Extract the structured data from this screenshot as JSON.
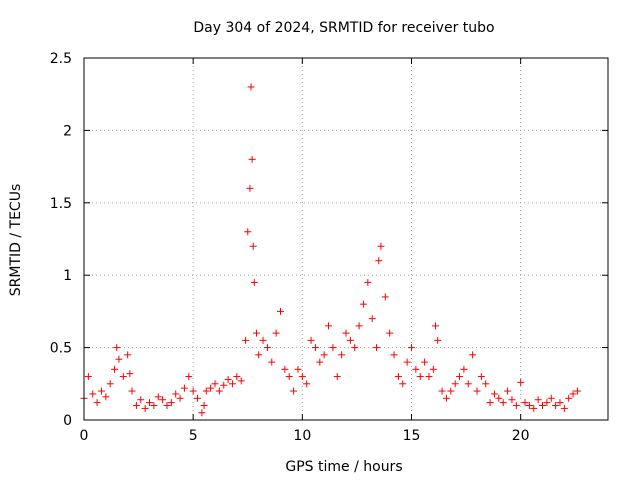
{
  "chart_data": {
    "type": "scatter",
    "title": "Day 304 of 2024, SRMTID for receiver tubo",
    "xlabel": "GPS time / hours",
    "ylabel": "SRMTID / TECUs",
    "xlim": [
      0,
      24
    ],
    "ylim": [
      0,
      2.5
    ],
    "xticks": [
      0,
      5,
      10,
      15,
      20
    ],
    "xtick_labels": [
      "0",
      "5",
      "10",
      "15",
      "20"
    ],
    "yticks": [
      0,
      0.5,
      1,
      1.5,
      2,
      2.5
    ],
    "ytick_labels": [
      "0",
      "0.5",
      "1",
      "1.5",
      "2",
      "2.5"
    ],
    "grid": true,
    "marker": "+",
    "color": "#ff0000",
    "series": [
      {
        "name": "SRMTID",
        "x": [
          0.0,
          0.2,
          0.4,
          0.6,
          0.8,
          1.0,
          1.2,
          1.4,
          1.5,
          1.6,
          1.8,
          2.0,
          2.1,
          2.2,
          2.4,
          2.6,
          2.8,
          3.0,
          3.2,
          3.4,
          3.6,
          3.8,
          4.0,
          4.2,
          4.4,
          4.6,
          4.8,
          5.0,
          5.2,
          5.4,
          5.5,
          5.6,
          5.8,
          6.0,
          6.2,
          6.4,
          6.6,
          6.8,
          7.0,
          7.2,
          7.4,
          7.5,
          7.6,
          7.65,
          7.7,
          7.75,
          7.8,
          7.9,
          8.0,
          8.2,
          8.4,
          8.6,
          8.8,
          9.0,
          9.2,
          9.4,
          9.6,
          9.8,
          10.0,
          10.2,
          10.4,
          10.6,
          10.8,
          11.0,
          11.2,
          11.4,
          11.6,
          11.8,
          12.0,
          12.2,
          12.4,
          12.6,
          12.8,
          13.0,
          13.2,
          13.4,
          13.5,
          13.6,
          13.8,
          14.0,
          14.2,
          14.4,
          14.6,
          14.8,
          15.0,
          15.2,
          15.4,
          15.6,
          15.8,
          16.0,
          16.1,
          16.2,
          16.4,
          16.6,
          16.8,
          17.0,
          17.2,
          17.4,
          17.6,
          17.8,
          18.0,
          18.2,
          18.4,
          18.6,
          18.8,
          19.0,
          19.2,
          19.4,
          19.6,
          19.8,
          20.0,
          20.2,
          20.4,
          20.6,
          20.8,
          21.0,
          21.2,
          21.4,
          21.6,
          21.8,
          22.0,
          22.2,
          22.4,
          22.6
        ],
        "y": [
          0.15,
          0.3,
          0.18,
          0.12,
          0.2,
          0.16,
          0.25,
          0.35,
          0.5,
          0.42,
          0.3,
          0.45,
          0.32,
          0.2,
          0.1,
          0.14,
          0.08,
          0.12,
          0.1,
          0.16,
          0.14,
          0.1,
          0.12,
          0.18,
          0.15,
          0.22,
          0.3,
          0.2,
          0.15,
          0.05,
          0.1,
          0.2,
          0.22,
          0.25,
          0.2,
          0.24,
          0.28,
          0.25,
          0.3,
          0.27,
          0.55,
          1.3,
          1.6,
          2.3,
          1.8,
          1.2,
          0.95,
          0.6,
          0.45,
          0.55,
          0.5,
          0.4,
          0.6,
          0.75,
          0.35,
          0.3,
          0.2,
          0.35,
          0.3,
          0.25,
          0.55,
          0.5,
          0.4,
          0.45,
          0.65,
          0.5,
          0.3,
          0.45,
          0.6,
          0.55,
          0.5,
          0.65,
          0.8,
          0.95,
          0.7,
          0.5,
          1.1,
          1.2,
          0.85,
          0.6,
          0.45,
          0.3,
          0.25,
          0.4,
          0.5,
          0.35,
          0.3,
          0.4,
          0.3,
          0.35,
          0.65,
          0.55,
          0.2,
          0.15,
          0.2,
          0.25,
          0.3,
          0.35,
          0.25,
          0.45,
          0.2,
          0.3,
          0.25,
          0.12,
          0.18,
          0.15,
          0.12,
          0.2,
          0.14,
          0.1,
          0.26,
          0.12,
          0.1,
          0.08,
          0.14,
          0.1,
          0.12,
          0.15,
          0.1,
          0.12,
          0.08,
          0.15,
          0.18,
          0.2
        ]
      }
    ]
  }
}
